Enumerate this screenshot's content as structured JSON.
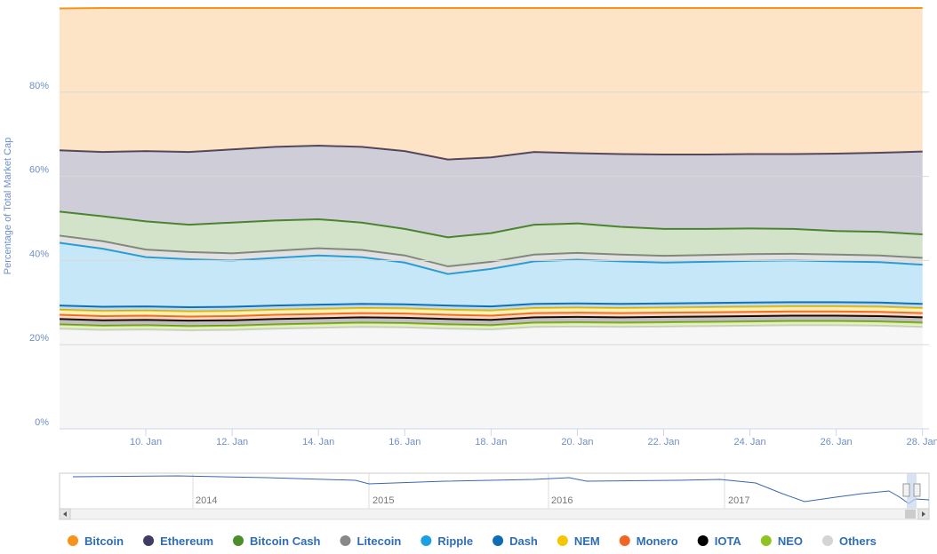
{
  "chart_data": {
    "type": "stacked-area",
    "y_axis_title": "Percentage of Total Market Cap",
    "x": [
      8,
      9,
      10,
      11,
      12,
      13,
      14,
      15,
      16,
      17,
      18,
      19,
      20,
      21,
      22,
      23,
      24,
      25,
      26,
      27,
      28
    ],
    "xlim": [
      8,
      28.15
    ],
    "xticks": [
      {
        "value": 10,
        "label": "10. Jan"
      },
      {
        "value": 12,
        "label": "12. Jan"
      },
      {
        "value": 14,
        "label": "14. Jan"
      },
      {
        "value": 16,
        "label": "16. Jan"
      },
      {
        "value": 18,
        "label": "18. Jan"
      },
      {
        "value": 20,
        "label": "20. Jan"
      },
      {
        "value": 22,
        "label": "22. Jan"
      },
      {
        "value": 24,
        "label": "24. Jan"
      },
      {
        "value": 26,
        "label": "26. Jan"
      },
      {
        "value": 28,
        "label": "28. Jan"
      }
    ],
    "ylim": [
      0,
      100
    ],
    "yticks": [
      {
        "value": 0,
        "label": "0%"
      },
      {
        "value": 20,
        "label": "20%"
      },
      {
        "value": 40,
        "label": "40%"
      },
      {
        "value": 60,
        "label": "60%"
      },
      {
        "value": 80,
        "label": "80%"
      }
    ],
    "grid": true,
    "legend": "bottom",
    "series": [
      {
        "name": "Others",
        "color": "#d4d4d4",
        "values": [
          23.8,
          23.5,
          23.6,
          23.4,
          23.5,
          23.8,
          24.0,
          24.2,
          24.1,
          23.8,
          23.6,
          24.2,
          24.3,
          24.2,
          24.3,
          24.4,
          24.5,
          24.6,
          24.6,
          24.5,
          24.2
        ]
      },
      {
        "name": "NEO",
        "color": "#8fc31f",
        "values": [
          1.0,
          1.0,
          1.0,
          1.0,
          1.0,
          1.0,
          1.0,
          1.0,
          1.0,
          1.0,
          1.0,
          1.0,
          1.0,
          1.0,
          1.0,
          1.0,
          1.0,
          1.0,
          1.0,
          1.0,
          1.0
        ]
      },
      {
        "name": "IOTA",
        "color": "#000000",
        "values": [
          1.3,
          1.3,
          1.3,
          1.3,
          1.3,
          1.3,
          1.3,
          1.3,
          1.3,
          1.3,
          1.3,
          1.3,
          1.3,
          1.3,
          1.3,
          1.3,
          1.3,
          1.3,
          1.3,
          1.3,
          1.3
        ]
      },
      {
        "name": "Monero",
        "color": "#f26522",
        "values": [
          1.0,
          1.0,
          1.0,
          1.0,
          1.0,
          1.0,
          1.0,
          1.0,
          1.0,
          1.0,
          1.0,
          1.0,
          1.0,
          1.0,
          1.0,
          1.0,
          1.0,
          1.0,
          1.0,
          1.0,
          1.0
        ]
      },
      {
        "name": "NEM",
        "color": "#f7c600",
        "values": [
          1.2,
          1.2,
          1.2,
          1.2,
          1.2,
          1.2,
          1.2,
          1.2,
          1.2,
          1.2,
          1.2,
          1.2,
          1.2,
          1.2,
          1.2,
          1.2,
          1.2,
          1.2,
          1.2,
          1.2,
          1.2
        ]
      },
      {
        "name": "Dash",
        "color": "#0c6cb4",
        "values": [
          1.0,
          1.0,
          1.0,
          1.0,
          1.0,
          1.0,
          1.0,
          1.0,
          1.0,
          1.0,
          1.0,
          1.0,
          1.0,
          1.0,
          1.0,
          1.0,
          1.0,
          1.0,
          1.0,
          1.0,
          1.0
        ]
      },
      {
        "name": "Ripple",
        "color": "#1ba1e2",
        "values": [
          14.9,
          13.8,
          11.7,
          11.4,
          11.0,
          11.3,
          11.7,
          11.1,
          9.9,
          7.5,
          8.9,
          10.1,
          10.4,
          10.1,
          9.7,
          9.8,
          9.9,
          9.9,
          9.7,
          9.6,
          9.3
        ]
      },
      {
        "name": "Litecoin",
        "color": "#888888",
        "values": [
          1.7,
          1.8,
          1.8,
          1.7,
          1.7,
          1.7,
          1.7,
          1.7,
          1.7,
          1.8,
          1.7,
          1.6,
          1.6,
          1.6,
          1.6,
          1.6,
          1.6,
          1.6,
          1.6,
          1.6,
          1.6
        ]
      },
      {
        "name": "Bitcoin Cash",
        "color": "#4c8f2a",
        "values": [
          5.7,
          5.9,
          6.7,
          6.5,
          7.3,
          7.2,
          6.9,
          6.5,
          6.3,
          6.9,
          6.8,
          7.1,
          7.0,
          6.6,
          6.4,
          6.2,
          6.1,
          5.9,
          5.6,
          5.6,
          5.6
        ]
      },
      {
        "name": "Ethereum",
        "color": "#3f3d63",
        "values": [
          14.6,
          15.3,
          16.7,
          17.3,
          17.4,
          17.5,
          17.5,
          18.0,
          18.5,
          18.5,
          18.0,
          17.3,
          16.7,
          17.3,
          17.7,
          17.7,
          17.7,
          17.8,
          18.4,
          18.8,
          19.7
        ]
      },
      {
        "name": "Bitcoin",
        "color": "#f7931a",
        "values": [
          33.7,
          34.2,
          34.0,
          34.2,
          33.6,
          33.0,
          32.7,
          33.0,
          34.0,
          36.0,
          35.5,
          34.2,
          34.5,
          34.7,
          34.8,
          34.8,
          34.7,
          34.7,
          34.6,
          34.4,
          34.1
        ]
      }
    ],
    "legend_order": [
      10,
      9,
      8,
      7,
      6,
      5,
      4,
      3,
      2,
      1,
      0
    ],
    "navigator": {
      "labels": [
        "2014",
        "2015",
        "2016",
        "2017"
      ]
    }
  }
}
